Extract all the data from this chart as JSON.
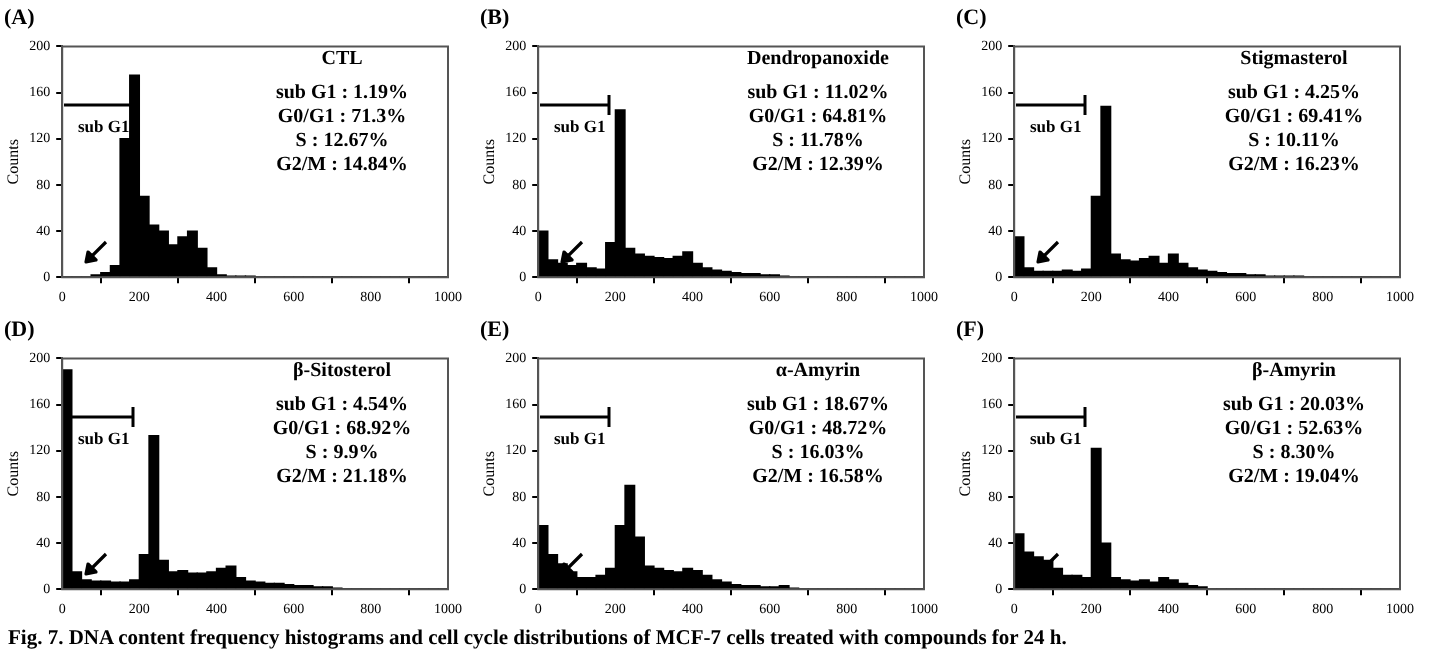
{
  "chart_data": [
    {
      "type": "histogram",
      "title": "CTL",
      "ylabel": "Counts",
      "color": "#000000",
      "xlim": [
        0,
        1000
      ],
      "ylim": [
        0,
        200
      ],
      "xticks": [
        0,
        200,
        400,
        600,
        800,
        1000
      ],
      "yticks": [
        0,
        40,
        80,
        120,
        160,
        200
      ],
      "bins": [
        0,
        25,
        50,
        75,
        100,
        125,
        150,
        175,
        200,
        225,
        250,
        275,
        300,
        325,
        350,
        375,
        400,
        425,
        450,
        475,
        500,
        525,
        550,
        575,
        600,
        625,
        650,
        675,
        700,
        725,
        750,
        775,
        800,
        825,
        850,
        875,
        900,
        925,
        950,
        975,
        1000
      ],
      "values": [
        0,
        0,
        0,
        2,
        4,
        10,
        120,
        175,
        70,
        45,
        40,
        28,
        35,
        40,
        25,
        8,
        2,
        1,
        1,
        1,
        0,
        0,
        0,
        0,
        0,
        0,
        0,
        0,
        0,
        0,
        0,
        0,
        0,
        0,
        0,
        0,
        0,
        0,
        0,
        0
      ],
      "annotations": [
        "(A)",
        "sub G1",
        "sub G1 : 1.19%",
        "G0/G1 : 71.3%",
        "S : 12.67%",
        "G2/M : 14.84%"
      ]
    },
    {
      "type": "histogram",
      "title": "Dendropanoxide",
      "ylabel": "Counts",
      "color": "#000000",
      "xlim": [
        0,
        1000
      ],
      "ylim": [
        0,
        200
      ],
      "xticks": [
        0,
        200,
        400,
        600,
        800,
        1000
      ],
      "yticks": [
        0,
        40,
        80,
        120,
        160,
        200
      ],
      "bins": [
        0,
        25,
        50,
        75,
        100,
        125,
        150,
        175,
        200,
        225,
        250,
        275,
        300,
        325,
        350,
        375,
        400,
        425,
        450,
        475,
        500,
        525,
        550,
        575,
        600,
        625,
        650,
        675,
        700,
        725,
        750,
        775,
        800,
        825,
        850,
        875,
        900,
        925,
        950,
        975,
        1000
      ],
      "values": [
        40,
        15,
        12,
        10,
        12,
        8,
        7,
        30,
        145,
        25,
        20,
        18,
        17,
        16,
        18,
        22,
        12,
        8,
        6,
        5,
        4,
        3,
        3,
        2,
        2,
        1,
        0,
        0,
        0,
        0,
        0,
        0,
        0,
        0,
        0,
        0,
        0,
        0,
        0,
        0
      ],
      "annotations": [
        "(B)",
        "sub G1",
        "sub G1 : 11.02%",
        "G0/G1 : 64.81%",
        "S : 11.78%",
        "G2/M : 12.39%"
      ]
    },
    {
      "type": "histogram",
      "title": "Stigmasterol",
      "ylabel": "Counts",
      "color": "#000000",
      "xlim": [
        0,
        1000
      ],
      "ylim": [
        0,
        200
      ],
      "xticks": [
        0,
        200,
        400,
        600,
        800,
        1000
      ],
      "yticks": [
        0,
        40,
        80,
        120,
        160,
        200
      ],
      "bins": [
        0,
        25,
        50,
        75,
        100,
        125,
        150,
        175,
        200,
        225,
        250,
        275,
        300,
        325,
        350,
        375,
        400,
        425,
        450,
        475,
        500,
        525,
        550,
        575,
        600,
        625,
        650,
        675,
        700,
        725,
        750,
        775,
        800,
        825,
        850,
        875,
        900,
        925,
        950,
        975,
        1000
      ],
      "values": [
        35,
        8,
        5,
        5,
        5,
        6,
        5,
        7,
        70,
        148,
        20,
        15,
        14,
        16,
        18,
        12,
        20,
        12,
        8,
        6,
        5,
        4,
        3,
        3,
        2,
        2,
        1,
        1,
        1,
        1,
        0,
        0,
        0,
        0,
        0,
        0,
        0,
        0,
        0,
        0
      ],
      "annotations": [
        "(C)",
        "sub G1",
        "sub G1 : 4.25%",
        "G0/G1 : 69.41%",
        "S : 10.11%",
        "G2/M : 16.23%"
      ]
    },
    {
      "type": "histogram",
      "title": "β-Sitosterol",
      "ylabel": "Counts",
      "color": "#000000",
      "xlim": [
        0,
        1000
      ],
      "ylim": [
        0,
        200
      ],
      "xticks": [
        0,
        200,
        400,
        600,
        800,
        1000
      ],
      "yticks": [
        0,
        40,
        80,
        120,
        160,
        200
      ],
      "bins": [
        0,
        25,
        50,
        75,
        100,
        125,
        150,
        175,
        200,
        225,
        250,
        275,
        300,
        325,
        350,
        375,
        400,
        425,
        450,
        475,
        500,
        525,
        550,
        575,
        600,
        625,
        650,
        675,
        700,
        725,
        750,
        775,
        800,
        825,
        850,
        875,
        900,
        925,
        950,
        975,
        1000
      ],
      "values": [
        190,
        15,
        8,
        7,
        7,
        6,
        6,
        8,
        30,
        133,
        25,
        15,
        16,
        14,
        14,
        15,
        18,
        20,
        10,
        7,
        6,
        5,
        5,
        4,
        3,
        3,
        2,
        2,
        1,
        0,
        0,
        0,
        0,
        0,
        0,
        0,
        0,
        0,
        0,
        0
      ],
      "annotations": [
        "(D)",
        "sub G1",
        "sub G1 : 4.54%",
        "G0/G1 : 68.92%",
        "S : 9.9%",
        "G2/M : 21.18%"
      ]
    },
    {
      "type": "histogram",
      "title": "α-Amyrin",
      "ylabel": "Counts",
      "color": "#000000",
      "xlim": [
        0,
        1000
      ],
      "ylim": [
        0,
        200
      ],
      "xticks": [
        0,
        200,
        400,
        600,
        800,
        1000
      ],
      "yticks": [
        0,
        40,
        80,
        120,
        160,
        200
      ],
      "bins": [
        0,
        25,
        50,
        75,
        100,
        125,
        150,
        175,
        200,
        225,
        250,
        275,
        300,
        325,
        350,
        375,
        400,
        425,
        450,
        475,
        500,
        525,
        550,
        575,
        600,
        625,
        650,
        675,
        700,
        725,
        750,
        775,
        800,
        825,
        850,
        875,
        900,
        925,
        950,
        975,
        1000
      ],
      "values": [
        55,
        30,
        22,
        15,
        10,
        10,
        12,
        18,
        55,
        90,
        45,
        20,
        18,
        16,
        15,
        18,
        16,
        12,
        8,
        6,
        4,
        3,
        3,
        2,
        2,
        3,
        1,
        0,
        0,
        0,
        0,
        0,
        0,
        0,
        0,
        0,
        0,
        0,
        0,
        0
      ],
      "annotations": [
        "(E)",
        "sub G1",
        "sub G1 : 18.67%",
        "G0/G1 : 48.72%",
        "S : 16.03%",
        "G2/M : 16.58%"
      ]
    },
    {
      "type": "histogram",
      "title": "β-Amyrin",
      "ylabel": "Counts",
      "color": "#000000",
      "xlim": [
        0,
        1000
      ],
      "ylim": [
        0,
        200
      ],
      "xticks": [
        0,
        200,
        400,
        600,
        800,
        1000
      ],
      "yticks": [
        0,
        40,
        80,
        120,
        160,
        200
      ],
      "bins": [
        0,
        25,
        50,
        75,
        100,
        125,
        150,
        175,
        200,
        225,
        250,
        275,
        300,
        325,
        350,
        375,
        400,
        425,
        450,
        475,
        500,
        525,
        550,
        575,
        600,
        625,
        650,
        675,
        700,
        725,
        750,
        775,
        800,
        825,
        850,
        875,
        900,
        925,
        950,
        975,
        1000
      ],
      "values": [
        48,
        32,
        28,
        25,
        18,
        12,
        12,
        10,
        122,
        40,
        10,
        8,
        7,
        8,
        6,
        10,
        8,
        5,
        3,
        2,
        0,
        0,
        0,
        0,
        0,
        0,
        0,
        0,
        0,
        0,
        0,
        0,
        0,
        0,
        0,
        0,
        0,
        0,
        0,
        0
      ],
      "annotations": [
        "(F)",
        "sub G1",
        "sub G1 : 20.03%",
        "G0/G1 : 52.63%",
        "S : 8.30%",
        "G2/M : 19.04%",
        "Fig. 7. DNA content frequency histograms and cell cycle distributions of MCF-7 cells treated with compounds for 24 h."
      ]
    }
  ]
}
